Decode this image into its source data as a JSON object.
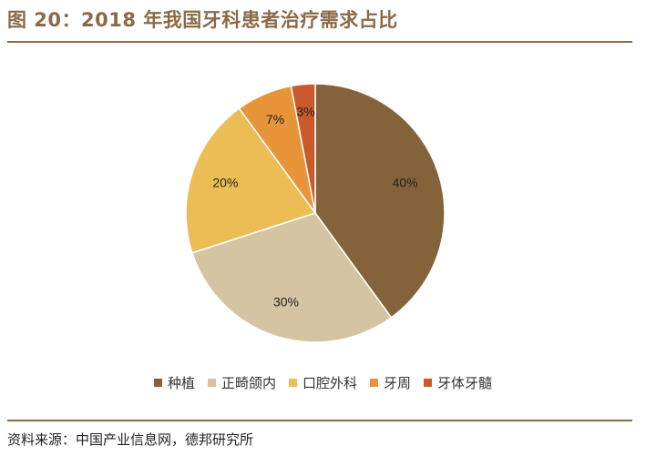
{
  "title": "图 20：2018 年我国牙科患者治疗需求占比",
  "source": "资料来源：中国产业信息网，德邦研究所",
  "chart_data": {
    "type": "pie",
    "categories": [
      "种植",
      "正畸颌内",
      "口腔外科",
      "牙周",
      "牙体牙髓"
    ],
    "values": [
      40,
      30,
      20,
      7,
      3
    ],
    "labels": [
      "40%",
      "30%",
      "20%",
      "7%",
      "3%"
    ],
    "colors": [
      "#84623a",
      "#d4c4a2",
      "#ecbd54",
      "#e8953a",
      "#c95a2c"
    ],
    "legend_position": "bottom"
  }
}
